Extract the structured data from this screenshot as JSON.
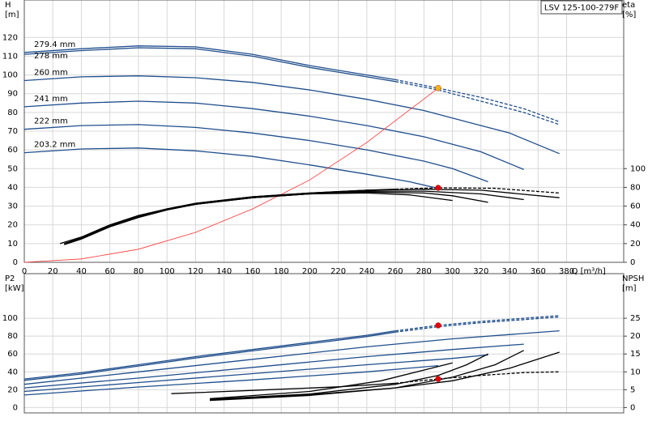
{
  "model": "LSV 125-100-279F",
  "chart_data": [
    {
      "type": "line",
      "x_label": "Q [m³/h]",
      "y_label": "H",
      "y_unit": "[m]",
      "y2_label": "eta",
      "y2_unit": "[%]",
      "xlim": [
        0,
        420
      ],
      "xticks": [
        0,
        20,
        40,
        60,
        80,
        100,
        120,
        140,
        160,
        180,
        200,
        220,
        240,
        260,
        280,
        300,
        320,
        340,
        360,
        380
      ],
      "ylim": [
        0,
        140
      ],
      "yticks": [
        0,
        10,
        20,
        30,
        40,
        50,
        60,
        70,
        80,
        90,
        100,
        110,
        120
      ],
      "y2lim": [
        0,
        280
      ],
      "y2ticks": [
        0,
        20,
        40,
        60,
        80,
        100
      ],
      "grid": true,
      "series": [
        {
          "name": "279.4 mm",
          "color": "#1f4e8c",
          "style": "solid",
          "x": [
            0,
            40,
            80,
            120,
            160,
            200,
            240,
            260
          ],
          "values": [
            112,
            114,
            115.5,
            115,
            111,
            105,
            100,
            97.5
          ]
        },
        {
          "color": "#1f4e8c",
          "style": "dashed",
          "x": [
            260,
            290,
            320,
            350,
            375
          ],
          "values": [
            97.5,
            93,
            88,
            82,
            75
          ]
        },
        {
          "name": "278 mm",
          "color": "#1f4e8c",
          "style": "solid",
          "x": [
            0,
            40,
            80,
            120,
            160,
            200,
            240,
            260
          ],
          "values": [
            111,
            113,
            114.5,
            114,
            110,
            104,
            99,
            96.5
          ]
        },
        {
          "color": "#1f4e8c",
          "style": "dashed",
          "x": [
            260,
            290,
            320,
            350,
            375
          ],
          "values": [
            96.5,
            92,
            86,
            80,
            73.5
          ]
        },
        {
          "name": "260 mm",
          "color": "#1f4e8c",
          "style": "solid",
          "x": [
            0,
            40,
            80,
            120,
            160,
            200,
            240,
            280,
            320,
            340,
            375
          ],
          "values": [
            97,
            99,
            99.5,
            98.5,
            96,
            92,
            87,
            81,
            73,
            69,
            58
          ]
        },
        {
          "name": "241 mm",
          "color": "#1f4e8c",
          "style": "solid",
          "x": [
            0,
            40,
            80,
            120,
            160,
            200,
            240,
            280,
            320,
            350
          ],
          "values": [
            83,
            85,
            86,
            85,
            82,
            78,
            73,
            67,
            59,
            49.5
          ]
        },
        {
          "name": "222 mm",
          "color": "#1f4e8c",
          "style": "solid",
          "x": [
            0,
            40,
            80,
            120,
            160,
            200,
            240,
            280,
            300,
            325
          ],
          "values": [
            71,
            73,
            73.5,
            72,
            69,
            65,
            60,
            54,
            50,
            43
          ]
        },
        {
          "name": "203.2 mm",
          "color": "#1f4e8c",
          "style": "solid",
          "x": [
            0,
            40,
            80,
            120,
            160,
            200,
            240,
            270,
            290
          ],
          "values": [
            58.5,
            60.5,
            61,
            59.5,
            56.5,
            52,
            47,
            43,
            39.5
          ]
        },
        {
          "color": "#ff3333",
          "style": "thin",
          "x": [
            0,
            40,
            80,
            120,
            160,
            200,
            240,
            290
          ],
          "values": [
            0,
            1.8,
            7,
            16,
            28.5,
            44,
            64,
            93
          ]
        },
        {
          "color": "#000000",
          "style": "solid",
          "axis": "y2",
          "x": [
            25,
            40,
            60,
            80,
            100,
            120,
            160,
            200,
            240,
            260
          ],
          "values": [
            20,
            27,
            40,
            50,
            57,
            63,
            70,
            74,
            77,
            78
          ]
        },
        {
          "color": "#000000",
          "style": "dashed",
          "axis": "y2",
          "x": [
            260,
            290,
            330,
            375
          ],
          "values": [
            78,
            79.5,
            79,
            74
          ]
        },
        {
          "color": "#000000",
          "style": "solid",
          "axis": "y2",
          "x": [
            28,
            40,
            60,
            80,
            100,
            120,
            160,
            200,
            240,
            270,
            300
          ],
          "values": [
            19,
            25,
            38,
            48,
            56,
            62,
            69,
            73,
            74,
            72,
            66
          ]
        },
        {
          "color": "#000000",
          "style": "solid",
          "axis": "y2",
          "x": [
            28,
            40,
            60,
            80,
            100,
            120,
            160,
            200,
            240,
            280,
            300,
            325
          ],
          "values": [
            19,
            25,
            38,
            48,
            56,
            62,
            69,
            73,
            75,
            74,
            71,
            64
          ]
        },
        {
          "color": "#000000",
          "style": "solid",
          "axis": "y2",
          "x": [
            28,
            40,
            60,
            80,
            100,
            120,
            160,
            200,
            240,
            280,
            320,
            350
          ],
          "values": [
            19,
            25,
            38,
            48,
            56,
            62,
            69,
            73,
            76,
            76,
            73,
            67
          ]
        },
        {
          "color": "#000000",
          "style": "solid",
          "axis": "y2",
          "x": [
            28,
            40,
            60,
            80,
            100,
            120,
            160,
            200,
            240,
            280,
            320,
            375
          ],
          "values": [
            20,
            26,
            39,
            49,
            57,
            63,
            70,
            74,
            77,
            78,
            77,
            69
          ]
        }
      ],
      "points": [
        {
          "x": 290,
          "value": 93,
          "color": "#f5b400"
        },
        {
          "x": 290,
          "value": 79.5,
          "axis": "y2",
          "color": "#e00000"
        }
      ]
    },
    {
      "type": "line",
      "y_label": "P2",
      "y_unit": "[kW]",
      "y2_label": "NPSH",
      "y2_unit": "[m]",
      "xlim": [
        0,
        420
      ],
      "xticks": [
        0,
        20,
        40,
        60,
        80,
        100,
        120,
        140,
        160,
        180,
        200,
        220,
        240,
        260,
        280,
        300,
        320,
        340,
        360,
        380
      ],
      "ylim": [
        -6,
        150
      ],
      "yticks": [
        0,
        20,
        40,
        60,
        80,
        100
      ],
      "y2lim": [
        -1.5,
        37.5
      ],
      "y2ticks": [
        0,
        5,
        10,
        15,
        20,
        25
      ],
      "grid": true,
      "series": [
        {
          "color": "#1f4e8c",
          "style": "solid",
          "x": [
            0,
            40,
            80,
            120,
            160,
            200,
            240,
            260
          ],
          "values": [
            32,
            39,
            48,
            57,
            65,
            73,
            81,
            86
          ]
        },
        {
          "color": "#1f4e8c",
          "style": "dashed",
          "x": [
            260,
            290,
            320,
            350,
            375
          ],
          "values": [
            86,
            92,
            96.5,
            100,
            103
          ]
        },
        {
          "color": "#1f4e8c",
          "style": "solid",
          "x": [
            0,
            40,
            80,
            120,
            160,
            200,
            240,
            260
          ],
          "values": [
            30.5,
            37.5,
            46.5,
            55.5,
            63.5,
            71.5,
            79.5,
            84.5
          ]
        },
        {
          "color": "#1f4e8c",
          "style": "dashed",
          "x": [
            260,
            290,
            320,
            350,
            375
          ],
          "values": [
            84.5,
            90.5,
            95,
            98.5,
            101.5
          ]
        },
        {
          "color": "#1f4e8c",
          "style": "solid",
          "x": [
            0,
            80,
            160,
            240,
            300,
            375
          ],
          "values": [
            26,
            40,
            54,
            68,
            77,
            86
          ]
        },
        {
          "color": "#1f4e8c",
          "style": "solid",
          "x": [
            0,
            80,
            160,
            240,
            300,
            350
          ],
          "values": [
            22,
            33,
            45,
            57,
            65,
            71
          ]
        },
        {
          "color": "#1f4e8c",
          "style": "solid",
          "x": [
            0,
            80,
            160,
            240,
            300,
            325
          ],
          "values": [
            18,
            28,
            38,
            48,
            55,
            59
          ]
        },
        {
          "color": "#1f4e8c",
          "style": "solid",
          "x": [
            0,
            80,
            160,
            240,
            290
          ],
          "values": [
            14,
            23,
            31,
            40,
            47
          ]
        },
        {
          "color": "#000000",
          "style": "solid",
          "axis": "y2",
          "x": [
            103,
            160,
            220,
            260
          ],
          "values": [
            3.9,
            4.8,
            5.8,
            6.8
          ]
        },
        {
          "color": "#000000",
          "style": "dashed",
          "axis": "y2",
          "x": [
            260,
            290,
            320,
            350,
            375
          ],
          "values": [
            6.8,
            8,
            9,
            9.8,
            10
          ]
        },
        {
          "color": "#000000",
          "style": "solid",
          "axis": "y2",
          "x": [
            130,
            200,
            260,
            300,
            340,
            375
          ],
          "values": [
            2.2,
            3.6,
            5.5,
            7.5,
            11,
            15.5
          ]
        },
        {
          "color": "#000000",
          "style": "solid",
          "axis": "y2",
          "x": [
            130,
            200,
            260,
            300,
            330,
            350
          ],
          "values": [
            2,
            3.4,
            5.5,
            8.5,
            12,
            16
          ]
        },
        {
          "color": "#000000",
          "style": "solid",
          "axis": "y2",
          "x": [
            130,
            200,
            260,
            290,
            310,
            325
          ],
          "values": [
            2.3,
            3.8,
            6.5,
            9,
            12,
            15
          ]
        },
        {
          "color": "#000000",
          "style": "solid",
          "axis": "y2",
          "x": [
            130,
            200,
            250,
            280,
            300
          ],
          "values": [
            2.5,
            4.5,
            7.5,
            10.5,
            12.5
          ]
        }
      ],
      "points": [
        {
          "x": 290,
          "value": 92,
          "color": "#e00000"
        },
        {
          "x": 290,
          "value": 8,
          "axis": "y2",
          "color": "#e00000"
        }
      ]
    }
  ]
}
